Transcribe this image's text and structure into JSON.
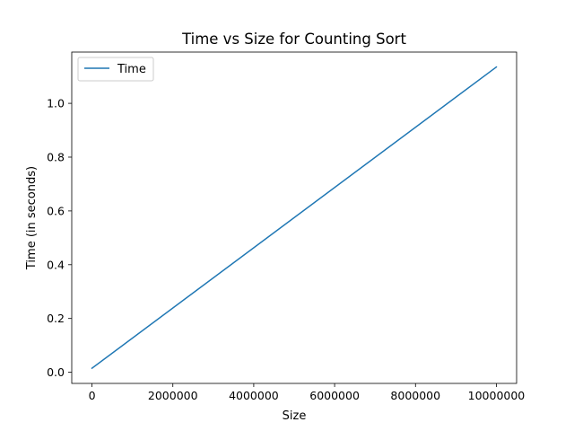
{
  "chart_data": {
    "type": "line",
    "title": "Time vs Size for Counting Sort",
    "xlabel": "Size",
    "ylabel": "Time (in seconds)",
    "xlim": [
      -500000,
      10500000
    ],
    "ylim": [
      -0.0414,
      1.1906
    ],
    "xticks": [
      0,
      2000000,
      4000000,
      6000000,
      8000000,
      10000000
    ],
    "xtick_labels": [
      "0",
      "2000000",
      "4000000",
      "6000000",
      "8000000",
      "10000000"
    ],
    "yticks": [
      0.0,
      0.2,
      0.4,
      0.6,
      0.8,
      1.0
    ],
    "ytick_labels": [
      "0.0",
      "0.2",
      "0.4",
      "0.6",
      "0.8",
      "1.0"
    ],
    "grid": false,
    "legend": {
      "position": "upper-left",
      "entries": [
        "Time"
      ]
    },
    "series": [
      {
        "name": "Time",
        "color": "#1f77b4",
        "x": [
          0,
          10000000
        ],
        "y": [
          0.015,
          1.135
        ]
      }
    ]
  }
}
